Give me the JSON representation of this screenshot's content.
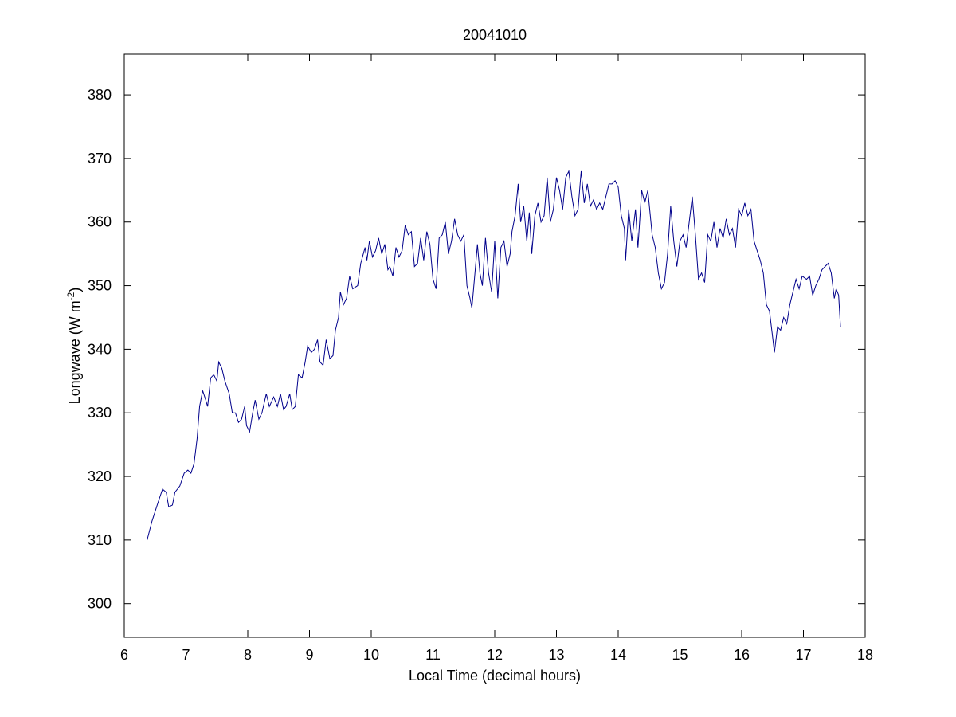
{
  "chart_data": {
    "type": "line",
    "title": "20041010",
    "xlabel": "Local Time (decimal hours)",
    "ylabel": {
      "text": "Longwave (W m",
      "superscript": "-2",
      "suffix": ")"
    },
    "xlim": [
      6,
      18
    ],
    "xticks": [
      6,
      7,
      8,
      9,
      10,
      11,
      12,
      13,
      14,
      15,
      16,
      17,
      18
    ],
    "ylim": [
      294.7,
      386.4
    ],
    "yticks": [
      300,
      310,
      320,
      330,
      340,
      350,
      360,
      370,
      380
    ],
    "grid": false,
    "series": [
      {
        "color": "#00008b",
        "x": [
          6.37,
          6.45,
          6.55,
          6.62,
          6.68,
          6.72,
          6.78,
          6.82,
          6.9,
          6.97,
          7.03,
          7.08,
          7.13,
          7.18,
          7.22,
          7.27,
          7.32,
          7.35,
          7.4,
          7.45,
          7.5,
          7.53,
          7.58,
          7.63,
          7.7,
          7.75,
          7.8,
          7.85,
          7.9,
          7.95,
          7.98,
          8.03,
          8.08,
          8.12,
          8.18,
          8.23,
          8.3,
          8.35,
          8.42,
          8.48,
          8.53,
          8.58,
          8.62,
          8.68,
          8.72,
          8.77,
          8.82,
          8.88,
          8.93,
          8.97,
          9.03,
          9.08,
          9.13,
          9.17,
          9.22,
          9.27,
          9.33,
          9.38,
          9.42,
          9.47,
          9.5,
          9.55,
          9.6,
          9.65,
          9.7,
          9.78,
          9.83,
          9.9,
          9.93,
          9.97,
          10.02,
          10.07,
          10.12,
          10.17,
          10.22,
          10.27,
          10.3,
          10.35,
          10.4,
          10.45,
          10.5,
          10.55,
          10.6,
          10.65,
          10.7,
          10.75,
          10.8,
          10.85,
          10.9,
          10.95,
          11.0,
          11.05,
          11.1,
          11.15,
          11.2,
          11.25,
          11.3,
          11.35,
          11.4,
          11.45,
          11.5,
          11.55,
          11.6,
          11.63,
          11.68,
          11.72,
          11.76,
          11.8,
          11.85,
          11.9,
          11.95,
          12.0,
          12.05,
          12.1,
          12.15,
          12.2,
          12.25,
          12.28,
          12.33,
          12.38,
          12.42,
          12.47,
          12.52,
          12.56,
          12.6,
          12.65,
          12.7,
          12.75,
          12.8,
          12.85,
          12.9,
          12.95,
          13.0,
          13.05,
          13.1,
          13.15,
          13.2,
          13.25,
          13.3,
          13.35,
          13.4,
          13.45,
          13.5,
          13.55,
          13.6,
          13.65,
          13.7,
          13.75,
          13.8,
          13.85,
          13.9,
          13.95,
          14.0,
          14.05,
          14.1,
          14.12,
          14.17,
          14.22,
          14.28,
          14.32,
          14.38,
          14.43,
          14.48,
          14.55,
          14.6,
          14.65,
          14.7,
          14.75,
          14.8,
          14.85,
          14.9,
          14.95,
          15.0,
          15.05,
          15.1,
          15.15,
          15.2,
          15.25,
          15.3,
          15.35,
          15.4,
          15.45,
          15.5,
          15.55,
          15.6,
          15.65,
          15.7,
          15.75,
          15.8,
          15.85,
          15.9,
          15.95,
          16.0,
          16.05,
          16.1,
          16.15,
          16.2,
          16.25,
          16.3,
          16.35,
          16.4,
          16.45,
          16.5,
          16.53,
          16.58,
          16.63,
          16.68,
          16.73,
          16.78,
          16.83,
          16.88,
          16.93,
          16.98,
          17.05,
          17.1,
          17.15,
          17.2,
          17.25,
          17.3,
          17.35,
          17.4,
          17.45,
          17.5,
          17.53,
          17.57,
          17.6
        ],
        "values": [
          310,
          313,
          316,
          318,
          317.5,
          315.2,
          315.5,
          317.5,
          318.5,
          320.5,
          321,
          320.5,
          322,
          326,
          331,
          333.5,
          332,
          331,
          335.5,
          336,
          335,
          338,
          337,
          335,
          333,
          330,
          330,
          328.5,
          329,
          331,
          328,
          327,
          330,
          332,
          329,
          330,
          333,
          331,
          332.5,
          331,
          333,
          330.5,
          331,
          333,
          330.5,
          331,
          336,
          335.5,
          338,
          340.5,
          339.5,
          340,
          341.5,
          338,
          337.5,
          341.5,
          338.5,
          339,
          343,
          345,
          349,
          347,
          348,
          351.5,
          349.5,
          350,
          353.5,
          356,
          354,
          357,
          354.5,
          355.5,
          357.5,
          355,
          356.5,
          352.5,
          353,
          351.5,
          356,
          354.5,
          355.5,
          359.5,
          358,
          358.5,
          353,
          353.5,
          357.5,
          354,
          358.5,
          356.5,
          351,
          349.5,
          357.5,
          358,
          360,
          355,
          357,
          360.5,
          358,
          357,
          358,
          350,
          348,
          346.5,
          352,
          356.5,
          352,
          350,
          357.5,
          352,
          349,
          357,
          348,
          356,
          357,
          353,
          355,
          358.5,
          361,
          366,
          360,
          362.5,
          357,
          361.5,
          355,
          361,
          363,
          360,
          361,
          367,
          360,
          362,
          367,
          365,
          362,
          367,
          368,
          364,
          361,
          362,
          368,
          363,
          366,
          362.5,
          363.5,
          362,
          363,
          362,
          364,
          366,
          366,
          366.5,
          365.5,
          361,
          359,
          354,
          362,
          357,
          362,
          356,
          365,
          363,
          365,
          358,
          356,
          352,
          349.5,
          350.5,
          355,
          362.5,
          357,
          353,
          357,
          358,
          356,
          360,
          364,
          358,
          351,
          352,
          350.5,
          358,
          357,
          360,
          356,
          359,
          357.5,
          360.5,
          358,
          359,
          356,
          362,
          361,
          363,
          361,
          362,
          357,
          355.5,
          354,
          352,
          347,
          346,
          342,
          339.5,
          343.5,
          343,
          345,
          344,
          347,
          349,
          351,
          349.5,
          351.5,
          351,
          351.5,
          348.5,
          350,
          351,
          352.5,
          353,
          353.5,
          352,
          348,
          349.5,
          348.5,
          343.5
        ]
      }
    ]
  }
}
